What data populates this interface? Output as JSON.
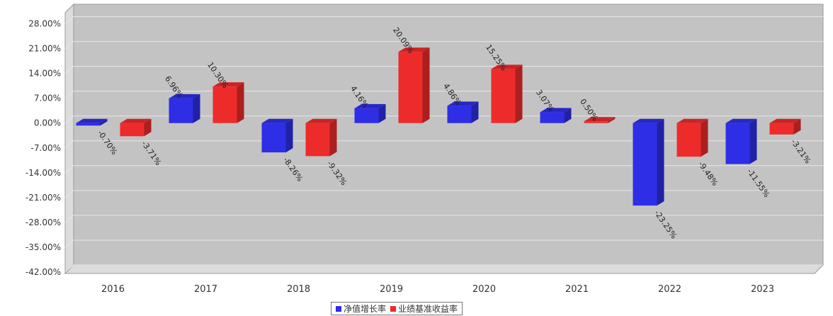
{
  "chart_data": {
    "type": "bar",
    "categories": [
      "2016",
      "2017",
      "2018",
      "2019",
      "2020",
      "2021",
      "2022",
      "2023"
    ],
    "series": [
      {
        "name": "净值增长率",
        "color": "#2e2ee6",
        "values": [
          -0.7,
          6.96,
          -8.26,
          4.16,
          4.86,
          3.07,
          -23.25,
          -11.55
        ],
        "labels": [
          "-0.70%",
          "6.96%",
          "-8.26%",
          "4.16%",
          "4.86%",
          "3.07%",
          "-23.25%",
          "-11.55%"
        ]
      },
      {
        "name": "业绩基准收益率",
        "color": "#ee2b2b",
        "values": [
          -3.71,
          10.3,
          -9.32,
          20.09,
          15.25,
          0.5,
          -9.48,
          -3.21
        ],
        "labels": [
          "-3.71%",
          "10.30%",
          "-9.32%",
          "20.09%",
          "15.25%",
          "0.50%",
          "-9.48%",
          "-3.21%"
        ]
      }
    ],
    "yticks": [
      28,
      21,
      14,
      7,
      0,
      -7,
      -14,
      -21,
      -28,
      -35,
      -42
    ],
    "ytick_labels": [
      "28.00%",
      "21.00%",
      "14.00%",
      "7.00%",
      "0.00%",
      "-7.00%",
      "-14.00%",
      "-21.00%",
      "-28.00%",
      "-35.00%",
      "-42.00%"
    ],
    "ylim": [
      -42,
      31.5
    ],
    "grid": true,
    "legend_position": "bottom-center",
    "title": "",
    "xlabel": "",
    "ylabel": "",
    "colors": {
      "plot_bg": "#c3c3c3",
      "plot_side": "#dcdcdc",
      "grid": "#e6e6e6"
    }
  }
}
